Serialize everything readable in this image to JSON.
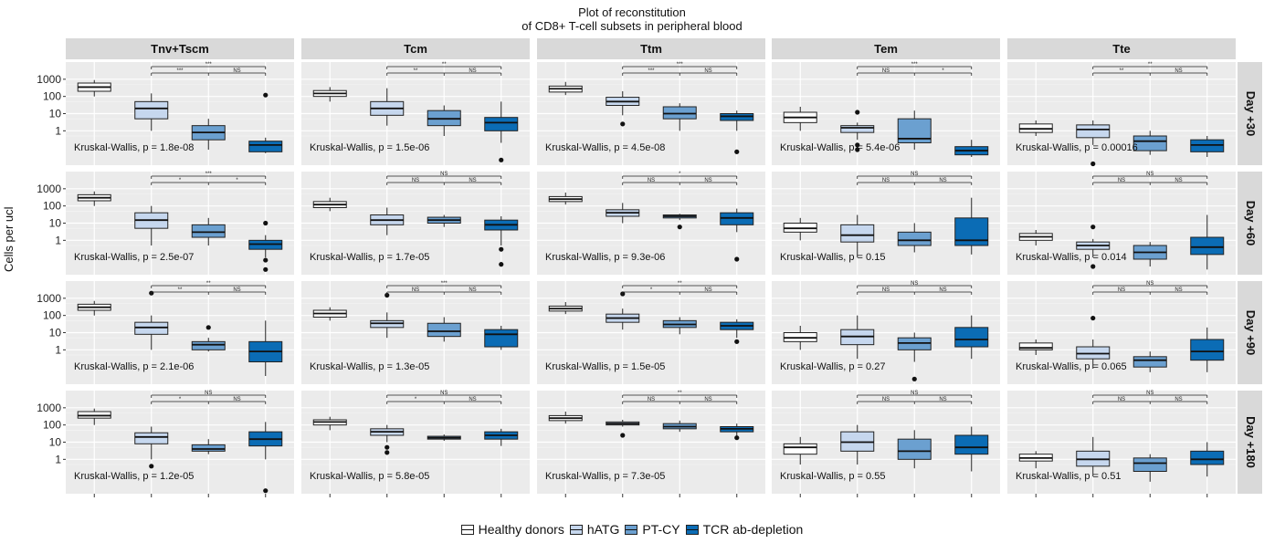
{
  "chart_data": {
    "type": "boxplot",
    "title_lines": [
      "Plot of reconstitution",
      "of CD8+ T-cell subsets in peripheral blood"
    ],
    "ylabel": "Cells per ucl",
    "y_scale": "log10",
    "y_ticks": [
      {
        "label": "1",
        "value": 1
      },
      {
        "label": "10",
        "value": 10
      },
      {
        "label": "100",
        "value": 100
      },
      {
        "label": "1000",
        "value": 1000
      }
    ],
    "ylim": [
      0.01,
      10000
    ],
    "columns": [
      "Tnv+Tscm",
      "Tcm",
      "Ttm",
      "Tem",
      "Tte"
    ],
    "rows": [
      "Day +30",
      "Day +60",
      "Day +90",
      "Day +180"
    ],
    "groups": [
      "Healthy donors",
      "hATG",
      "PT-CY",
      "TCR ab-depletion"
    ],
    "group_colors": [
      "#ffffff",
      "#c6d7ee",
      "#6ba0d0",
      "#0b6cb5"
    ],
    "panel_bg": "#ebebeb",
    "strip_bg": "#d9d9d9",
    "panels": [
      {
        "row": 0,
        "col": 0,
        "kw": "Kruskal-Wallis, p = 1.8e-08",
        "sig": {
          "top": "***",
          "left": "***",
          "right": "NS"
        },
        "boxes": [
          {
            "q1": 200,
            "med": 350,
            "q3": 600,
            "lo": 100,
            "hi": 900,
            "out": []
          },
          {
            "q1": 5,
            "med": 20,
            "q3": 50,
            "lo": 1,
            "hi": 150,
            "out": []
          },
          {
            "q1": 0.3,
            "med": 0.8,
            "q3": 2,
            "lo": 0.08,
            "hi": 5,
            "out": []
          },
          {
            "q1": 0.06,
            "med": 0.15,
            "q3": 0.25,
            "lo": 0.05,
            "hi": 0.4,
            "out": [
              120
            ]
          }
        ]
      },
      {
        "row": 0,
        "col": 1,
        "kw": "Kruskal-Wallis, p = 1.5e-06",
        "sig": {
          "top": "**",
          "left": "**",
          "right": "NS"
        },
        "boxes": [
          {
            "q1": 100,
            "med": 150,
            "q3": 220,
            "lo": 50,
            "hi": 350,
            "out": []
          },
          {
            "q1": 8,
            "med": 20,
            "q3": 50,
            "lo": 2,
            "hi": 300,
            "out": []
          },
          {
            "q1": 2,
            "med": 5,
            "q3": 15,
            "lo": 0.5,
            "hi": 30,
            "out": []
          },
          {
            "q1": 1,
            "med": 3,
            "q3": 6,
            "lo": 0.2,
            "hi": 50,
            "out": [
              0.02
            ]
          }
        ]
      },
      {
        "row": 0,
        "col": 2,
        "kw": "Kruskal-Wallis, p = 4.5e-08",
        "sig": {
          "top": "***",
          "left": "***",
          "right": "NS"
        },
        "boxes": [
          {
            "q1": 180,
            "med": 280,
            "q3": 400,
            "lo": 120,
            "hi": 700,
            "out": []
          },
          {
            "q1": 30,
            "med": 50,
            "q3": 90,
            "lo": 8,
            "hi": 200,
            "out": [
              2.5
            ]
          },
          {
            "q1": 5,
            "med": 10,
            "q3": 25,
            "lo": 1,
            "hi": 40,
            "out": []
          },
          {
            "q1": 4,
            "med": 7,
            "q3": 10,
            "lo": 1,
            "hi": 15,
            "out": [
              0.06
            ]
          }
        ]
      },
      {
        "row": 0,
        "col": 3,
        "kw": "Kruskal-Wallis, p = 5.4e-06",
        "sig": {
          "top": "***",
          "left": "NS",
          "right": "*"
        },
        "boxes": [
          {
            "q1": 3,
            "med": 6,
            "q3": 12,
            "lo": 1,
            "hi": 25,
            "out": []
          },
          {
            "q1": 0.8,
            "med": 1.5,
            "q3": 2,
            "lo": 0.3,
            "hi": 3,
            "out": [
              12,
              0.15,
              0.08
            ]
          },
          {
            "q1": 0.2,
            "med": 0.35,
            "q3": 5,
            "lo": 0.08,
            "hi": 15,
            "out": []
          },
          {
            "q1": 0.04,
            "med": 0.07,
            "q3": 0.12,
            "lo": 0.03,
            "hi": 0.3,
            "out": []
          }
        ]
      },
      {
        "row": 0,
        "col": 4,
        "kw": "Kruskal-Wallis, p = 0.00016",
        "sig": {
          "top": "**",
          "left": "**",
          "right": "NS"
        },
        "boxes": [
          {
            "q1": 0.8,
            "med": 1.3,
            "q3": 2.5,
            "lo": 0.5,
            "hi": 4,
            "out": []
          },
          {
            "q1": 0.4,
            "med": 1.2,
            "q3": 2.2,
            "lo": 0.15,
            "hi": 4,
            "out": [
              0.012
            ]
          },
          {
            "q1": 0.07,
            "med": 0.25,
            "q3": 0.5,
            "lo": 0.04,
            "hi": 1,
            "out": []
          },
          {
            "q1": 0.06,
            "med": 0.15,
            "q3": 0.3,
            "lo": 0.03,
            "hi": 0.5,
            "out": []
          }
        ]
      },
      {
        "row": 1,
        "col": 0,
        "kw": "Kruskal-Wallis, p = 2.5e-07",
        "sig": {
          "top": "***",
          "left": "*",
          "right": "*"
        },
        "boxes": [
          {
            "q1": 200,
            "med": 300,
            "q3": 450,
            "lo": 100,
            "hi": 700,
            "out": []
          },
          {
            "q1": 5,
            "med": 15,
            "q3": 40,
            "lo": 0.5,
            "hi": 100,
            "out": []
          },
          {
            "q1": 1.5,
            "med": 3,
            "q3": 8,
            "lo": 0.5,
            "hi": 20,
            "out": []
          },
          {
            "q1": 0.3,
            "med": 0.6,
            "q3": 1,
            "lo": 0.1,
            "hi": 2,
            "out": [
              10,
              0.07,
              0.02
            ]
          }
        ]
      },
      {
        "row": 1,
        "col": 1,
        "kw": "Kruskal-Wallis, p = 1.7e-05",
        "sig": {
          "top": "NS",
          "left": "NS",
          "right": "NS"
        },
        "boxes": [
          {
            "q1": 80,
            "med": 120,
            "q3": 180,
            "lo": 50,
            "hi": 300,
            "out": []
          },
          {
            "q1": 8,
            "med": 15,
            "q3": 30,
            "lo": 2,
            "hi": 80,
            "out": []
          },
          {
            "q1": 10,
            "med": 15,
            "q3": 22,
            "lo": 6,
            "hi": 30,
            "out": []
          },
          {
            "q1": 4,
            "med": 8,
            "q3": 15,
            "lo": 0.5,
            "hi": 25,
            "out": [
              0.3,
              0.04
            ]
          }
        ]
      },
      {
        "row": 1,
        "col": 2,
        "kw": "Kruskal-Wallis, p = 9.3e-06",
        "sig": {
          "top": "*",
          "left": "NS",
          "right": "NS"
        },
        "boxes": [
          {
            "q1": 180,
            "med": 250,
            "q3": 350,
            "lo": 120,
            "hi": 600,
            "out": []
          },
          {
            "q1": 25,
            "med": 40,
            "q3": 60,
            "lo": 10,
            "hi": 150,
            "out": []
          },
          {
            "q1": 20,
            "med": 25,
            "q3": 30,
            "lo": 15,
            "hi": 35,
            "out": [
              6
            ]
          },
          {
            "q1": 8,
            "med": 20,
            "q3": 40,
            "lo": 3,
            "hi": 70,
            "out": [
              0.08
            ]
          }
        ]
      },
      {
        "row": 1,
        "col": 3,
        "kw": "Kruskal-Wallis, p = 0.15",
        "sig": {
          "top": "NS",
          "left": "NS",
          "right": "NS"
        },
        "boxes": [
          {
            "q1": 3,
            "med": 5,
            "q3": 10,
            "lo": 1,
            "hi": 20,
            "out": []
          },
          {
            "q1": 0.8,
            "med": 2,
            "q3": 8,
            "lo": 0.1,
            "hi": 30,
            "out": []
          },
          {
            "q1": 0.5,
            "med": 1,
            "q3": 3,
            "lo": 0.2,
            "hi": 10,
            "out": []
          },
          {
            "q1": 0.5,
            "med": 1,
            "q3": 20,
            "lo": 0.15,
            "hi": 300,
            "out": []
          }
        ]
      },
      {
        "row": 1,
        "col": 4,
        "kw": "Kruskal-Wallis, p = 0.014",
        "sig": {
          "top": "NS",
          "left": "NS",
          "right": "NS"
        },
        "boxes": [
          {
            "q1": 1,
            "med": 1.6,
            "q3": 2.5,
            "lo": 0.5,
            "hi": 4,
            "out": []
          },
          {
            "q1": 0.3,
            "med": 0.5,
            "q3": 0.8,
            "lo": 0.1,
            "hi": 1.2,
            "out": [
              6,
              0.03
            ]
          },
          {
            "q1": 0.08,
            "med": 0.2,
            "q3": 0.5,
            "lo": 0.03,
            "hi": 0.8,
            "out": []
          },
          {
            "q1": 0.15,
            "med": 0.4,
            "q3": 1.5,
            "lo": 0.02,
            "hi": 30,
            "out": []
          }
        ]
      },
      {
        "row": 2,
        "col": 0,
        "kw": "Kruskal-Wallis, p = 2.1e-06",
        "sig": {
          "top": "**",
          "left": "**",
          "right": "NS"
        },
        "boxes": [
          {
            "q1": 200,
            "med": 300,
            "q3": 450,
            "lo": 100,
            "hi": 700,
            "out": []
          },
          {
            "q1": 8,
            "med": 20,
            "q3": 40,
            "lo": 1,
            "hi": 100,
            "out": [
              2000
            ]
          },
          {
            "q1": 1,
            "med": 2,
            "q3": 3,
            "lo": 0.8,
            "hi": 5,
            "out": [
              20
            ]
          },
          {
            "q1": 0.2,
            "med": 0.8,
            "q3": 3,
            "lo": 0.03,
            "hi": 50,
            "out": []
          }
        ]
      },
      {
        "row": 2,
        "col": 1,
        "kw": "Kruskal-Wallis, p = 1.3e-05",
        "sig": {
          "top": "***",
          "left": "NS",
          "right": "NS"
        },
        "boxes": [
          {
            "q1": 80,
            "med": 130,
            "q3": 200,
            "lo": 50,
            "hi": 300,
            "out": []
          },
          {
            "q1": 20,
            "med": 35,
            "q3": 50,
            "lo": 5,
            "hi": 150,
            "out": [
              1500
            ]
          },
          {
            "q1": 6,
            "med": 12,
            "q3": 35,
            "lo": 3,
            "hi": 80,
            "out": []
          },
          {
            "q1": 1.5,
            "med": 8,
            "q3": 15,
            "lo": 1,
            "hi": 25,
            "out": []
          }
        ]
      },
      {
        "row": 2,
        "col": 2,
        "kw": "Kruskal-Wallis, p = 1.5e-05",
        "sig": {
          "top": "**",
          "left": "*",
          "right": "NS"
        },
        "boxes": [
          {
            "q1": 180,
            "med": 250,
            "q3": 350,
            "lo": 120,
            "hi": 600,
            "out": []
          },
          {
            "q1": 40,
            "med": 70,
            "q3": 120,
            "lo": 15,
            "hi": 250,
            "out": [
              1800
            ]
          },
          {
            "q1": 20,
            "med": 30,
            "q3": 50,
            "lo": 8,
            "hi": 80,
            "out": []
          },
          {
            "q1": 15,
            "med": 25,
            "q3": 40,
            "lo": 5,
            "hi": 60,
            "out": [
              3
            ]
          }
        ]
      },
      {
        "row": 2,
        "col": 3,
        "kw": "Kruskal-Wallis, p = 0.27",
        "sig": {
          "top": "NS",
          "left": "NS",
          "right": "NS"
        },
        "boxes": [
          {
            "q1": 3,
            "med": 5,
            "q3": 10,
            "lo": 1,
            "hi": 25,
            "out": []
          },
          {
            "q1": 2,
            "med": 6,
            "q3": 15,
            "lo": 0.3,
            "hi": 100,
            "out": []
          },
          {
            "q1": 1,
            "med": 2.5,
            "q3": 5,
            "lo": 0.2,
            "hi": 10,
            "out": [
              0.02
            ]
          },
          {
            "q1": 1.5,
            "med": 4,
            "q3": 20,
            "lo": 0.3,
            "hi": 100,
            "out": []
          }
        ]
      },
      {
        "row": 2,
        "col": 4,
        "kw": "Kruskal-Wallis, p = 0.065",
        "sig": {
          "top": "NS",
          "left": "NS",
          "right": "NS"
        },
        "boxes": [
          {
            "q1": 1,
            "med": 1.3,
            "q3": 2.5,
            "lo": 0.5,
            "hi": 4,
            "out": []
          },
          {
            "q1": 0.3,
            "med": 0.6,
            "q3": 1.5,
            "lo": 0.08,
            "hi": 4,
            "out": [
              70
            ]
          },
          {
            "q1": 0.1,
            "med": 0.25,
            "q3": 0.4,
            "lo": 0.05,
            "hi": 0.8,
            "out": []
          },
          {
            "q1": 0.25,
            "med": 0.8,
            "q3": 4,
            "lo": 0.05,
            "hi": 20,
            "out": []
          }
        ]
      },
      {
        "row": 3,
        "col": 0,
        "kw": "Kruskal-Wallis, p = 1.2e-05",
        "sig": {
          "top": "NS",
          "left": "*",
          "right": "NS"
        },
        "boxes": [
          {
            "q1": 250,
            "med": 350,
            "q3": 600,
            "lo": 100,
            "hi": 900,
            "out": []
          },
          {
            "q1": 8,
            "med": 20,
            "q3": 35,
            "lo": 1,
            "hi": 80,
            "out": [
              0.4
            ]
          },
          {
            "q1": 3,
            "med": 4,
            "q3": 7,
            "lo": 2,
            "hi": 15,
            "out": []
          },
          {
            "q1": 6,
            "med": 15,
            "q3": 40,
            "lo": 1,
            "hi": 150,
            "out": [
              0.015
            ]
          }
        ]
      },
      {
        "row": 3,
        "col": 1,
        "kw": "Kruskal-Wallis, p = 5.8e-05",
        "sig": {
          "top": "NS",
          "left": "*",
          "right": "NS"
        },
        "boxes": [
          {
            "q1": 100,
            "med": 150,
            "q3": 200,
            "lo": 50,
            "hi": 300,
            "out": []
          },
          {
            "q1": 25,
            "med": 40,
            "q3": 60,
            "lo": 10,
            "hi": 100,
            "out": [
              5,
              2.5
            ]
          },
          {
            "q1": 15,
            "med": 18,
            "q3": 22,
            "lo": 12,
            "hi": 28,
            "out": []
          },
          {
            "q1": 15,
            "med": 25,
            "q3": 40,
            "lo": 6,
            "hi": 60,
            "out": []
          }
        ]
      },
      {
        "row": 3,
        "col": 2,
        "kw": "Kruskal-Wallis, p = 7.3e-05",
        "sig": {
          "top": "**",
          "left": "NS",
          "right": "NS"
        },
        "boxes": [
          {
            "q1": 180,
            "med": 250,
            "q3": 350,
            "lo": 120,
            "hi": 600,
            "out": []
          },
          {
            "q1": 100,
            "med": 120,
            "q3": 150,
            "lo": 80,
            "hi": 200,
            "out": [
              25
            ]
          },
          {
            "q1": 60,
            "med": 80,
            "q3": 120,
            "lo": 40,
            "hi": 180,
            "out": []
          },
          {
            "q1": 40,
            "med": 60,
            "q3": 80,
            "lo": 20,
            "hi": 120,
            "out": [
              18
            ]
          }
        ]
      },
      {
        "row": 3,
        "col": 3,
        "kw": "Kruskal-Wallis, p = 0.55",
        "sig": {
          "top": "NS",
          "left": "NS",
          "right": "NS"
        },
        "boxes": [
          {
            "q1": 2,
            "med": 5,
            "q3": 8,
            "lo": 0.5,
            "hi": 20,
            "out": []
          },
          {
            "q1": 3,
            "med": 10,
            "q3": 40,
            "lo": 0.5,
            "hi": 100,
            "out": []
          },
          {
            "q1": 1,
            "med": 3,
            "q3": 15,
            "lo": 0.3,
            "hi": 50,
            "out": []
          },
          {
            "q1": 2,
            "med": 5,
            "q3": 25,
            "lo": 0.2,
            "hi": 80,
            "out": []
          }
        ]
      },
      {
        "row": 3,
        "col": 4,
        "kw": "Kruskal-Wallis, p = 0.51",
        "sig": {
          "top": "NS",
          "left": "NS",
          "right": "NS"
        },
        "boxes": [
          {
            "q1": 0.8,
            "med": 1.2,
            "q3": 2,
            "lo": 0.3,
            "hi": 3,
            "out": []
          },
          {
            "q1": 0.4,
            "med": 1,
            "q3": 3,
            "lo": 0.1,
            "hi": 20,
            "out": []
          },
          {
            "q1": 0.2,
            "med": 0.6,
            "q3": 1.2,
            "lo": 0.05,
            "hi": 2,
            "out": []
          },
          {
            "q1": 0.5,
            "med": 1,
            "q3": 3,
            "lo": 0.1,
            "hi": 10,
            "out": []
          }
        ]
      }
    ]
  }
}
